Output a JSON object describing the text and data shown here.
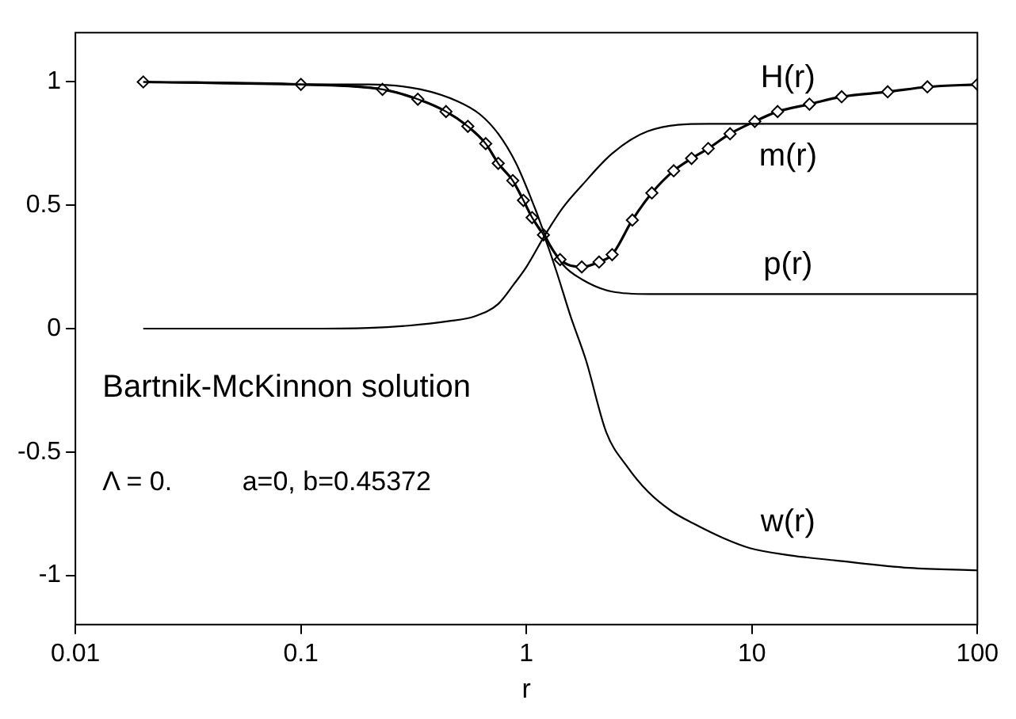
{
  "chart_data": {
    "type": "line",
    "xlabel": "r",
    "log": "x",
    "xlim": [
      0.01,
      100
    ],
    "xticks": [
      0.01,
      0.1,
      1,
      10,
      100
    ],
    "ylim": [
      -1.2,
      1.2
    ],
    "yticks": [
      -1,
      -0.5,
      0,
      0.5,
      1
    ],
    "grid": false,
    "legend": false,
    "line_style": "solid",
    "marker": "none",
    "annotations": [
      "Bartnik-McKinnon solution",
      "Λ = 0.",
      "a=0, b=0.45372"
    ],
    "series": [
      {
        "name": "H(r)",
        "color": "#000000",
        "marker": "diamond",
        "x": [
          0.02,
          0.1,
          0.23,
          0.33,
          0.44,
          0.55,
          0.66,
          0.75,
          0.87,
          0.97,
          1.06,
          1.19,
          1.41,
          1.76,
          2.1,
          2.4,
          2.95,
          3.6,
          4.5,
          5.4,
          6.4,
          8,
          10.3,
          13,
          18,
          25,
          40,
          60,
          100
        ],
        "values": [
          1,
          0.99,
          0.97,
          0.93,
          0.88,
          0.82,
          0.75,
          0.67,
          0.6,
          0.52,
          0.45,
          0.38,
          0.28,
          0.25,
          0.27,
          0.3,
          0.44,
          0.55,
          0.64,
          0.69,
          0.73,
          0.79,
          0.84,
          0.88,
          0.91,
          0.94,
          0.96,
          0.98,
          0.99
        ]
      },
      {
        "name": "m(r)",
        "color": "#000000",
        "x": [
          0.02,
          0.1,
          0.2,
          0.3,
          0.45,
          0.59,
          0.75,
          0.88,
          1.0,
          1.21,
          1.45,
          1.76,
          2.4,
          3.45,
          6.4,
          15,
          100
        ],
        "values": [
          0,
          0,
          0.003,
          0.012,
          0.03,
          0.05,
          0.1,
          0.18,
          0.25,
          0.38,
          0.49,
          0.58,
          0.71,
          0.8,
          0.83,
          0.83,
          0.83
        ]
      },
      {
        "name": "p(r)",
        "color": "#000000",
        "x": [
          0.02,
          0.1,
          0.2,
          0.34,
          0.5,
          0.62,
          0.75,
          0.9,
          1.1,
          1.21,
          1.45,
          1.76,
          2.4,
          3.5,
          6,
          100
        ],
        "values": [
          1,
          0.99,
          0.99,
          0.97,
          0.92,
          0.87,
          0.79,
          0.67,
          0.48,
          0.38,
          0.26,
          0.2,
          0.15,
          0.14,
          0.14,
          0.14
        ]
      },
      {
        "name": "w(r)",
        "color": "#000000",
        "x": [
          0.02,
          0.1,
          0.23,
          0.33,
          0.44,
          0.55,
          0.66,
          0.75,
          0.87,
          0.97,
          1.06,
          1.19,
          1.35,
          1.57,
          1.84,
          2.26,
          2.8,
          3.45,
          4.4,
          5.5,
          7.5,
          9.8,
          15,
          23.6,
          50,
          100
        ],
        "values": [
          1,
          0.99,
          0.97,
          0.93,
          0.88,
          0.82,
          0.75,
          0.67,
          0.6,
          0.52,
          0.45,
          0.38,
          0.24,
          0.05,
          -0.13,
          -0.42,
          -0.56,
          -0.66,
          -0.74,
          -0.79,
          -0.85,
          -0.89,
          -0.92,
          -0.94,
          -0.97,
          -0.98
        ]
      }
    ]
  }
}
